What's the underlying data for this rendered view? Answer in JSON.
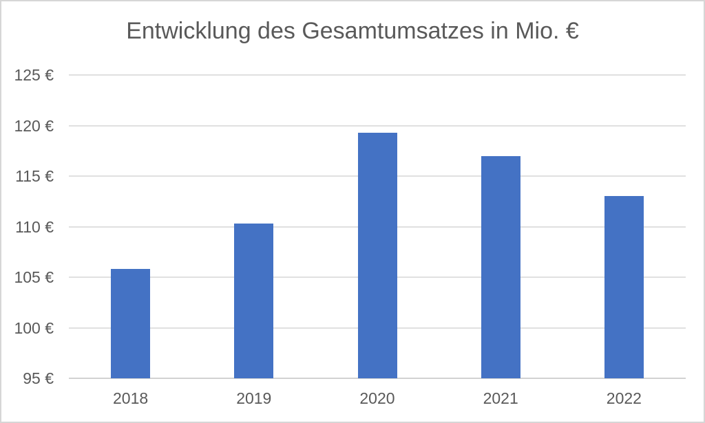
{
  "chart_data": {
    "type": "bar",
    "title": "Entwicklung des Gesamtumsatzes in Mio. €",
    "categories": [
      "2018",
      "2019",
      "2020",
      "2021",
      "2022"
    ],
    "values": [
      105.8,
      110.3,
      119.3,
      117.0,
      113.0
    ],
    "xlabel": "",
    "ylabel": "",
    "ylim": [
      95,
      125
    ],
    "ytick_step": 5,
    "ytick_labels": [
      "95 €",
      "100 €",
      "105 €",
      "110 €",
      "115 €",
      "120 €",
      "125 €"
    ],
    "grid": true,
    "legend_position": "none",
    "colors": {
      "bar": "#4472c4",
      "gridline": "#e0e0e0",
      "axis_line": "#d2d2d2",
      "text": "#595959",
      "background": "#ffffff",
      "frame_border": "#d6d6d6"
    }
  }
}
